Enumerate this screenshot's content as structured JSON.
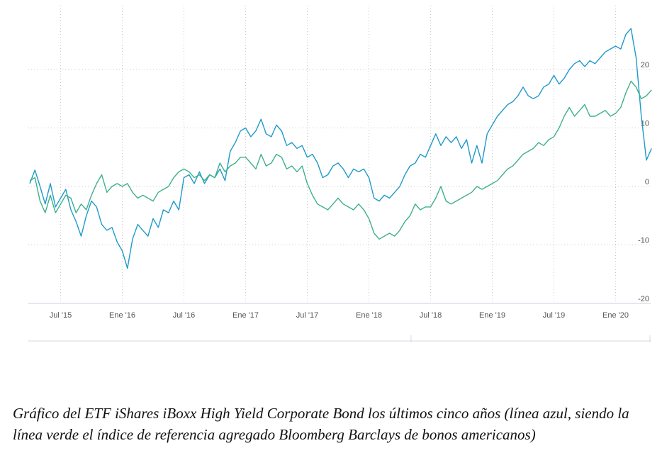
{
  "caption": "Gráfico del ETF iShares iBoxx High Yield Corporate Bond los últimos cinco años (línea azul, siendo la línea verde el índice de referencia agregado Bloomberg Barclays de bonos americanos)",
  "chart_data": {
    "type": "line",
    "x_unit": "date (YYYY-MM)",
    "xlim": [
      "2015-04",
      "2020-05"
    ],
    "x_ticks": [
      {
        "label": "Jul '15",
        "x": "2015-07"
      },
      {
        "label": "Ene '16",
        "x": "2016-01"
      },
      {
        "label": "Jul '16",
        "x": "2016-07"
      },
      {
        "label": "Ene '17",
        "x": "2017-01"
      },
      {
        "label": "Jul '17",
        "x": "2017-07"
      },
      {
        "label": "Ene '18",
        "x": "2018-01"
      },
      {
        "label": "Jul '18",
        "x": "2018-07"
      },
      {
        "label": "Ene '19",
        "x": "2019-01"
      },
      {
        "label": "Jul '19",
        "x": "2019-07"
      },
      {
        "label": "Ene '20",
        "x": "2020-01"
      }
    ],
    "y_ticks": [
      20,
      10,
      0,
      -10,
      -20
    ],
    "ylim": [
      -20,
      30
    ],
    "grid": true,
    "series": [
      {
        "color": "#1f9ac9",
        "points": [
          [
            "2015-04",
            0.5
          ],
          [
            "2015-04",
            2.8
          ],
          [
            "2015-05",
            0
          ],
          [
            "2015-05",
            -3
          ],
          [
            "2015-06",
            0.5
          ],
          [
            "2015-06",
            -3.5
          ],
          [
            "2015-07",
            -2
          ],
          [
            "2015-07",
            -0.5
          ],
          [
            "2015-08",
            -4
          ],
          [
            "2015-08",
            -6
          ],
          [
            "2015-09",
            -8.5
          ],
          [
            "2015-09",
            -5
          ],
          [
            "2015-10",
            -2.5
          ],
          [
            "2015-10",
            -3.5
          ],
          [
            "2015-11",
            -6.5
          ],
          [
            "2015-11",
            -7.5
          ],
          [
            "2015-12",
            -7
          ],
          [
            "2015-12",
            -9.5
          ],
          [
            "2016-01",
            -11
          ],
          [
            "2016-01",
            -14
          ],
          [
            "2016-02",
            -9
          ],
          [
            "2016-02",
            -6.5
          ],
          [
            "2016-03",
            -7.5
          ],
          [
            "2016-03",
            -8.5
          ],
          [
            "2016-04",
            -5.5
          ],
          [
            "2016-04",
            -7
          ],
          [
            "2016-05",
            -4
          ],
          [
            "2016-05",
            -4.5
          ],
          [
            "2016-06",
            -2.5
          ],
          [
            "2016-06",
            -4
          ],
          [
            "2016-07",
            1.5
          ],
          [
            "2016-07",
            2
          ],
          [
            "2016-08",
            0.5
          ],
          [
            "2016-08",
            2.5
          ],
          [
            "2016-09",
            0.5
          ],
          [
            "2016-09",
            2
          ],
          [
            "2016-10",
            1.5
          ],
          [
            "2016-10",
            3
          ],
          [
            "2016-11",
            1
          ],
          [
            "2016-11",
            6
          ],
          [
            "2016-12",
            7.5
          ],
          [
            "2016-12",
            9.5
          ],
          [
            "2017-01",
            10
          ],
          [
            "2017-01",
            8.5
          ],
          [
            "2017-02",
            9.5
          ],
          [
            "2017-02",
            11.5
          ],
          [
            "2017-03",
            9
          ],
          [
            "2017-03",
            8.5
          ],
          [
            "2017-04",
            10.5
          ],
          [
            "2017-04",
            9.5
          ],
          [
            "2017-05",
            7
          ],
          [
            "2017-05",
            7.5
          ],
          [
            "2017-06",
            6.5
          ],
          [
            "2017-06",
            7
          ],
          [
            "2017-07",
            5
          ],
          [
            "2017-07",
            5.5
          ],
          [
            "2017-08",
            4
          ],
          [
            "2017-08",
            1.5
          ],
          [
            "2017-09",
            2
          ],
          [
            "2017-09",
            3.5
          ],
          [
            "2017-10",
            4
          ],
          [
            "2017-10",
            3
          ],
          [
            "2017-11",
            1.5
          ],
          [
            "2017-11",
            3
          ],
          [
            "2017-12",
            2.5
          ],
          [
            "2017-12",
            3
          ],
          [
            "2018-01",
            1.5
          ],
          [
            "2018-01",
            -2
          ],
          [
            "2018-02",
            -2.5
          ],
          [
            "2018-02",
            -1.5
          ],
          [
            "2018-03",
            -2
          ],
          [
            "2018-03",
            -1
          ],
          [
            "2018-04",
            0
          ],
          [
            "2018-04",
            2
          ],
          [
            "2018-05",
            3.5
          ],
          [
            "2018-05",
            4
          ],
          [
            "2018-06",
            5.5
          ],
          [
            "2018-06",
            5
          ],
          [
            "2018-07",
            7
          ],
          [
            "2018-07",
            9
          ],
          [
            "2018-08",
            7
          ],
          [
            "2018-08",
            8.5
          ],
          [
            "2018-09",
            7.5
          ],
          [
            "2018-09",
            8.5
          ],
          [
            "2018-10",
            6.5
          ],
          [
            "2018-10",
            8
          ],
          [
            "2018-11",
            4
          ],
          [
            "2018-11",
            7
          ],
          [
            "2018-12",
            4
          ],
          [
            "2018-12",
            9
          ],
          [
            "2019-01",
            10.5
          ],
          [
            "2019-01",
            12
          ],
          [
            "2019-02",
            13
          ],
          [
            "2019-02",
            14
          ],
          [
            "2019-03",
            14.5
          ],
          [
            "2019-03",
            15.5
          ],
          [
            "2019-04",
            17
          ],
          [
            "2019-04",
            15.5
          ],
          [
            "2019-05",
            15
          ],
          [
            "2019-05",
            15.5
          ],
          [
            "2019-06",
            17
          ],
          [
            "2019-06",
            17.5
          ],
          [
            "2019-07",
            19
          ],
          [
            "2019-07",
            17.5
          ],
          [
            "2019-08",
            18.5
          ],
          [
            "2019-08",
            20
          ],
          [
            "2019-09",
            21
          ],
          [
            "2019-09",
            21.5
          ],
          [
            "2019-10",
            20.5
          ],
          [
            "2019-10",
            21.5
          ],
          [
            "2019-11",
            21
          ],
          [
            "2019-11",
            22
          ],
          [
            "2019-12",
            23
          ],
          [
            "2019-12",
            23.5
          ],
          [
            "2020-01",
            24
          ],
          [
            "2020-01",
            23.5
          ],
          [
            "2020-02",
            26
          ],
          [
            "2020-02",
            27
          ],
          [
            "2020-03",
            22
          ],
          [
            "2020-03",
            12
          ],
          [
            "2020-04",
            4.5
          ],
          [
            "2020-04",
            6.5
          ]
        ]
      },
      {
        "color": "#3db08a",
        "points": [
          [
            "2015-04",
            1
          ],
          [
            "2015-04",
            1.5
          ],
          [
            "2015-05",
            -2.5
          ],
          [
            "2015-05",
            -4.5
          ],
          [
            "2015-06",
            -1.5
          ],
          [
            "2015-06",
            -4.5
          ],
          [
            "2015-07",
            -3
          ],
          [
            "2015-07",
            -1.5
          ],
          [
            "2015-08",
            -2
          ],
          [
            "2015-08",
            -4.5
          ],
          [
            "2015-09",
            -3
          ],
          [
            "2015-09",
            -4
          ],
          [
            "2015-10",
            -1.5
          ],
          [
            "2015-10",
            0.5
          ],
          [
            "2015-11",
            2
          ],
          [
            "2015-11",
            -1
          ],
          [
            "2015-12",
            0
          ],
          [
            "2015-12",
            0.5
          ],
          [
            "2016-01",
            0
          ],
          [
            "2016-01",
            0.5
          ],
          [
            "2016-02",
            -1
          ],
          [
            "2016-02",
            -2
          ],
          [
            "2016-03",
            -1.5
          ],
          [
            "2016-03",
            -2
          ],
          [
            "2016-04",
            -2.5
          ],
          [
            "2016-04",
            -1
          ],
          [
            "2016-05",
            -0.5
          ],
          [
            "2016-05",
            0
          ],
          [
            "2016-06",
            1.5
          ],
          [
            "2016-06",
            2.5
          ],
          [
            "2016-07",
            3
          ],
          [
            "2016-07",
            2.5
          ],
          [
            "2016-08",
            1.5
          ],
          [
            "2016-08",
            2
          ],
          [
            "2016-09",
            1
          ],
          [
            "2016-09",
            2
          ],
          [
            "2016-10",
            1.5
          ],
          [
            "2016-10",
            4
          ],
          [
            "2016-11",
            2.5
          ],
          [
            "2016-11",
            3.5
          ],
          [
            "2016-12",
            4
          ],
          [
            "2016-12",
            5
          ],
          [
            "2017-01",
            5
          ],
          [
            "2017-01",
            4
          ],
          [
            "2017-02",
            3
          ],
          [
            "2017-02",
            5.5
          ],
          [
            "2017-03",
            3.5
          ],
          [
            "2017-03",
            4
          ],
          [
            "2017-04",
            5.5
          ],
          [
            "2017-04",
            5
          ],
          [
            "2017-05",
            3
          ],
          [
            "2017-05",
            3.5
          ],
          [
            "2017-06",
            2.5
          ],
          [
            "2017-06",
            3.5
          ],
          [
            "2017-07",
            0.5
          ],
          [
            "2017-07",
            -1.5
          ],
          [
            "2017-08",
            -3
          ],
          [
            "2017-08",
            -3.5
          ],
          [
            "2017-09",
            -4
          ],
          [
            "2017-09",
            -3
          ],
          [
            "2017-10",
            -2
          ],
          [
            "2017-10",
            -3
          ],
          [
            "2017-11",
            -3.5
          ],
          [
            "2017-11",
            -4
          ],
          [
            "2017-12",
            -3
          ],
          [
            "2017-12",
            -4
          ],
          [
            "2018-01",
            -5.5
          ],
          [
            "2018-01",
            -8
          ],
          [
            "2018-02",
            -9
          ],
          [
            "2018-02",
            -8.5
          ],
          [
            "2018-03",
            -8
          ],
          [
            "2018-03",
            -8.5
          ],
          [
            "2018-04",
            -7.5
          ],
          [
            "2018-04",
            -6
          ],
          [
            "2018-05",
            -5
          ],
          [
            "2018-05",
            -3
          ],
          [
            "2018-06",
            -4
          ],
          [
            "2018-06",
            -3.5
          ],
          [
            "2018-07",
            -3.5
          ],
          [
            "2018-07",
            -2
          ],
          [
            "2018-08",
            0
          ],
          [
            "2018-08",
            -2.5
          ],
          [
            "2018-09",
            -3
          ],
          [
            "2018-09",
            -2.5
          ],
          [
            "2018-10",
            -2
          ],
          [
            "2018-10",
            -1.5
          ],
          [
            "2018-11",
            -1
          ],
          [
            "2018-11",
            0
          ],
          [
            "2018-12",
            -0.5
          ],
          [
            "2018-12",
            0
          ],
          [
            "2019-01",
            0.5
          ],
          [
            "2019-01",
            1
          ],
          [
            "2019-02",
            2
          ],
          [
            "2019-02",
            3
          ],
          [
            "2019-03",
            3.5
          ],
          [
            "2019-03",
            4.5
          ],
          [
            "2019-04",
            5.5
          ],
          [
            "2019-04",
            6
          ],
          [
            "2019-05",
            6.5
          ],
          [
            "2019-05",
            7.5
          ],
          [
            "2019-06",
            7
          ],
          [
            "2019-06",
            8
          ],
          [
            "2019-07",
            8.5
          ],
          [
            "2019-07",
            10
          ],
          [
            "2019-08",
            12
          ],
          [
            "2019-08",
            13.5
          ],
          [
            "2019-09",
            12
          ],
          [
            "2019-09",
            13
          ],
          [
            "2019-10",
            14
          ],
          [
            "2019-10",
            12
          ],
          [
            "2019-11",
            12
          ],
          [
            "2019-11",
            12.5
          ],
          [
            "2019-12",
            13
          ],
          [
            "2019-12",
            12
          ],
          [
            "2020-01",
            12.5
          ],
          [
            "2020-01",
            13.5
          ],
          [
            "2020-02",
            16
          ],
          [
            "2020-02",
            18
          ],
          [
            "2020-03",
            17
          ],
          [
            "2020-03",
            15
          ],
          [
            "2020-04",
            15.5
          ],
          [
            "2020-04",
            16.5
          ]
        ]
      }
    ]
  }
}
